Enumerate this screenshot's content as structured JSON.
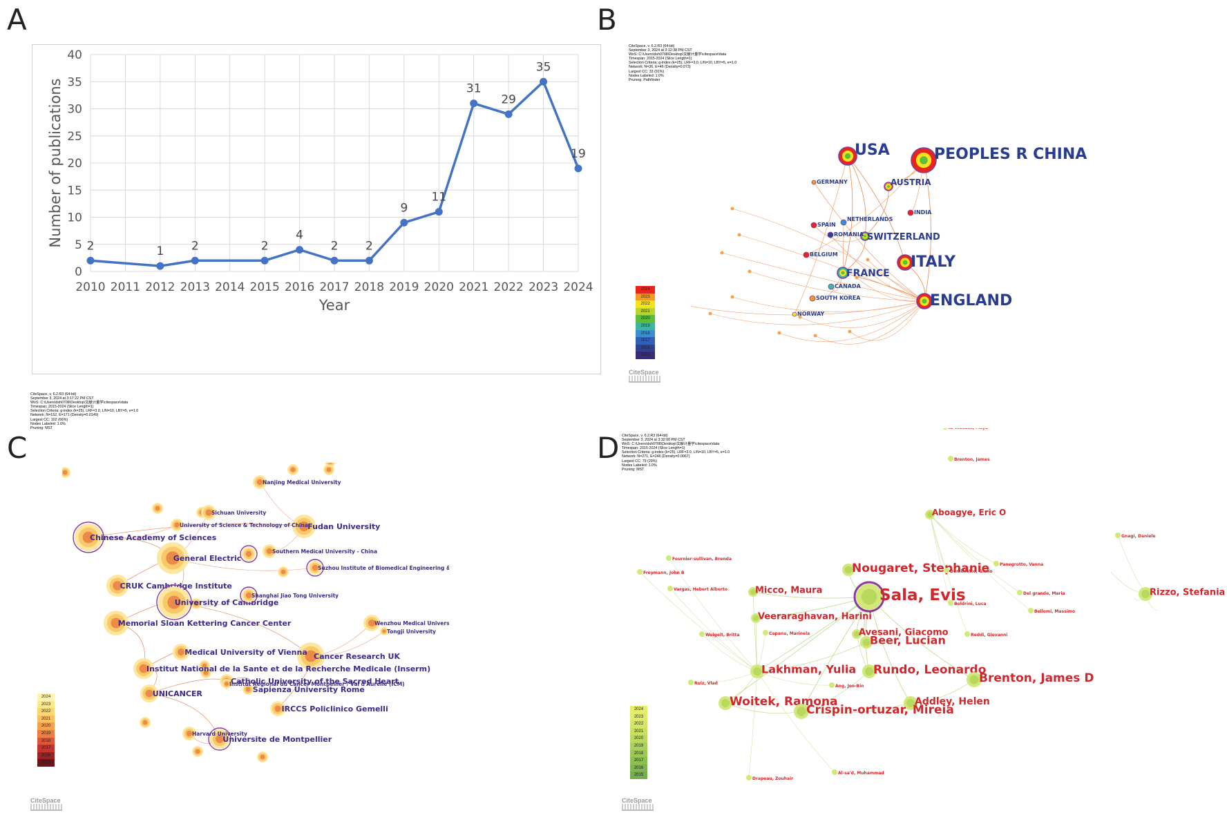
{
  "panels": {
    "a": "A",
    "b": "B",
    "c": "C",
    "d": "D"
  },
  "chart_data": {
    "type": "line",
    "title": "",
    "xlabel": "Year",
    "ylabel": "Number of publications",
    "categories": [
      "2010",
      "2011",
      "2012",
      "2013",
      "2014",
      "2015",
      "2016",
      "2017",
      "2018",
      "2019",
      "2020",
      "2021",
      "2022",
      "2023",
      "2024"
    ],
    "series": [
      {
        "name": "Publications",
        "x": [
          "2010",
          "2012",
          "2013",
          "2015",
          "2016",
          "2017",
          "2018",
          "2019",
          "2020",
          "2021",
          "2022",
          "2023",
          "2024"
        ],
        "values": [
          2,
          1,
          2,
          2,
          4,
          2,
          2,
          9,
          11,
          31,
          29,
          35,
          19
        ]
      }
    ],
    "ylim": [
      0,
      40
    ],
    "yticks": [
      0,
      5,
      10,
      15,
      20,
      25,
      30,
      35,
      40
    ],
    "grid": true,
    "color": "#4472c4"
  },
  "panel_b": {
    "meta": [
      "CiteSpace, v. 6.2.R3 (64-bit)",
      "September 3, 2024 at 3:12:38 PM CST",
      "WoS: C:\\Users\\dsh0708\\Desktop\\文献计量学\\citespace\\data",
      "Timespan: 2015-2024 (Slice Length=1)",
      "Selection Criteria: g-index (k=25), LRF=3.0, L/N=10, LBY=5, e=1.0",
      "Network: N=36, E=46 (Density=0.073)",
      "Largest CC: 33 (91%)",
      "Nodes Labeled: 1.0%",
      "Pruning: Pathfinder"
    ],
    "labels_large": [
      "USA",
      "PEOPLES R CHINA",
      "ITALY",
      "ENGLAND",
      "FRANCE",
      "SWITZERLAND",
      "AUSTRIA"
    ],
    "labels_small": [
      "GERMANY",
      "NETHERLANDS",
      "SPAIN",
      "ROMANIA",
      "BELGIUM",
      "CANADA",
      "SOUTH KOREA",
      "NORWAY",
      "INDIA"
    ],
    "legend_years": [
      "2024",
      "2023",
      "2022",
      "2021",
      "2020",
      "2019",
      "2018",
      "2017",
      "2016",
      "2015"
    ],
    "legend_colors": [
      "#e8241c",
      "#f39b1e",
      "#f4e31d",
      "#b9d52c",
      "#5cbf3b",
      "#3bb6a0",
      "#3a8fd1",
      "#3060b8",
      "#31408f",
      "#3b2a7a"
    ],
    "logo": "CiteSpace"
  },
  "panel_c": {
    "meta": [
      "CiteSpace, v. 6.2.R3 (64-bit)",
      "September 3, 2024 at 3:17:22 PM CST",
      "WoS: C:\\Users\\dsh0708\\Desktop\\文献计量学\\citespace\\data",
      "Timespan: 2015-2024 (Slice Length=1)",
      "Selection Criteria: g-index (k=25), LRF=3.0, L/N=10, LBY=5, e=1.0",
      "Network: N=152, E=171 (Density=0.0149)",
      "Largest CC: 102 (66%)",
      "Nodes Labeled: 1.0%",
      "Pruning: MST"
    ],
    "labels_large": [
      "Chinese Academy of Sciences",
      "General Electric",
      "CRUK Cambridge Institute",
      "University of Cambridge",
      "Memorial Sloan Kettering Cancer Center",
      "Fudan University",
      "Cancer Research UK",
      "Institut National de la Sante et de la Recherche Medicale (Inserm)",
      "UNICANCER",
      "Universite de Montpellier",
      "Catholic University of the Sacred Heart",
      "IRCCS Policlinico Gemelli",
      "Sapienza University Rome",
      "Medical University of Vienna"
    ],
    "labels_small": [
      "Nanjing Medical University",
      "Sichuan University",
      "University of Science & Technology of China",
      "Southern Medical University - China",
      "Suzhou Institute of Biomedical Engineering & Technology",
      "Shanghai Jiao Tong University",
      "Wenzhou Medical University",
      "Tongji University",
      "Institut Regional du Cancer Montpellier / Val d'Aurelle (ICM)",
      "Harvard University"
    ],
    "legend_years": [
      "2024",
      "2023",
      "2022",
      "2021",
      "2020",
      "2019",
      "2018",
      "2017",
      "2016",
      "2015"
    ],
    "legend_colors": [
      "#fff4b0",
      "#fde98a",
      "#fcd770",
      "#f9c060",
      "#f4a24e",
      "#ec7f40",
      "#dc5636",
      "#c4352e",
      "#9c2226",
      "#6e1418"
    ],
    "logo": "CiteSpace"
  },
  "panel_d": {
    "meta": [
      "CiteSpace, v. 6.2.R3 (64-bit)",
      "September 3, 2024 at 3:32:00 PM CST",
      "WoS: C:\\Users\\dsh0708\\Desktop\\文献计量学\\citespace\\data",
      "Timespan: 2015-2024 (Slice Length=1)",
      "Selection Criteria: g-index (k=25), LRF=3.0, L/N=10, LBY=5, e=1.0",
      "Network: N=271, E=246 (Density=0.0067)",
      "Largest CC: 79 (29%)",
      "Nodes Labeled: 1.0%",
      "Pruning: MST"
    ],
    "labels_large": [
      "Sala, Evis",
      "Nougaret, Stephanie",
      "Micco, Maura",
      "Veeraraghavan, Harini",
      "Avesani, Giacomo",
      "Beer, Lucian",
      "Lakhman, Yulia",
      "Rundo, Leonardo",
      "Brenton, James D",
      "Addley, Helen",
      "Woitek, Ramona",
      "Crispin-ortuzar, Mireia",
      "Aboagye, Eric O",
      "Rizzo, Stefania"
    ],
    "labels_small": [
      "Al-mosawi, Maya",
      "Brenton, James",
      "Fournier-sullivan, Brenda",
      "Freymann, John B",
      "Vargas, Hebert Alberto",
      "Weigelt, Britta",
      "Capanu, Marinela",
      "Ruiz, Vlad",
      "Ang, Joo-Bin",
      "Al-sa'd, Muhammad",
      "Drapeau, Zouhair",
      "Dominietto, Giulio",
      "Boldrini, Luca",
      "Reddi, Giovanni",
      "Panegrotto, Vanna",
      "Del grande, Maria",
      "Bellomi, Massimo",
      "Gnagi, Daniele"
    ],
    "legend_years": [
      "2024",
      "2023",
      "2022",
      "2021",
      "2020",
      "2019",
      "2018",
      "2017",
      "2016",
      "2015"
    ],
    "legend_colors": [
      "#e6ef6a",
      "#dfec6a",
      "#d5e566",
      "#c9df63",
      "#bbd85f",
      "#abd05a",
      "#9cc856",
      "#8dbf52",
      "#7fb74e",
      "#72ae4b"
    ],
    "logo": "CiteSpace"
  }
}
